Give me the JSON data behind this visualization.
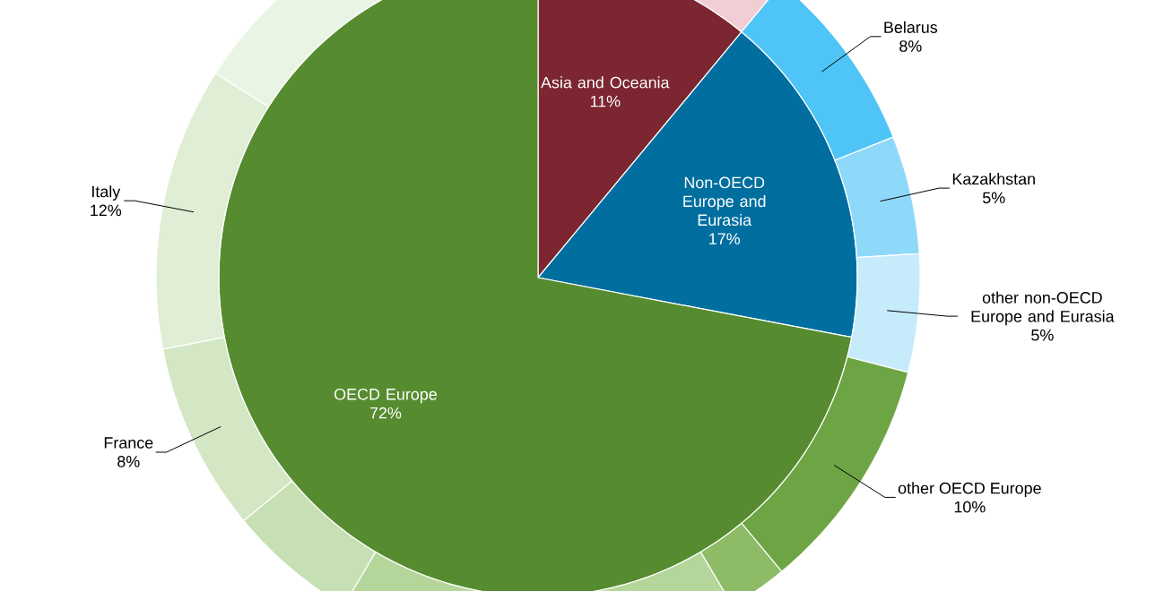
{
  "chart_data": [
    {
      "type": "pie",
      "categories": [
        "Asia and Oceania",
        "Non-OECD Europe and Eurasia",
        "OECD Europe"
      ],
      "values": [
        11,
        17,
        72
      ],
      "value_labels": [
        "11%",
        "17%",
        "72%"
      ],
      "colors": [
        "#7b2630",
        "#006f9f",
        "#568c2f"
      ]
    },
    {
      "type": "donut",
      "categories": [
        null,
        "Belarus",
        "Kazakhstan",
        "other non-OECD Europe and Eurasia",
        "other OECD Europe",
        null,
        null,
        null,
        "France",
        "Italy",
        null
      ],
      "values": [
        11,
        8,
        5,
        5,
        10,
        2.5,
        17,
        5.5,
        8,
        12,
        16
      ],
      "value_labels": [
        null,
        "8%",
        "5%",
        "5%",
        "10%",
        null,
        null,
        null,
        "8%",
        "12%",
        null
      ],
      "colors": [
        "#f3cdd4",
        "#4fc4f6",
        "#8ed9fa",
        "#c6ecfb",
        "#6ea544",
        "#8dbb66",
        "#b5d69b",
        "#c6dfb3",
        "#d3e7c5",
        "#dfeed5",
        "#eaf4e4"
      ]
    }
  ]
}
